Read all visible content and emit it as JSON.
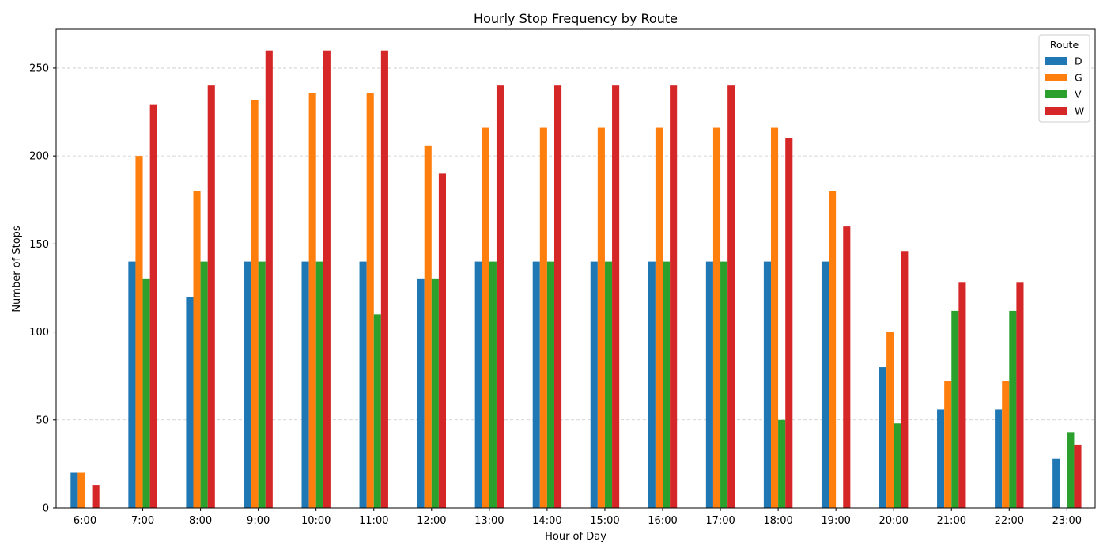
{
  "chart_data": {
    "type": "bar",
    "title": "Hourly Stop Frequency by Route",
    "xlabel": "Hour of Day",
    "ylabel": "Number of Stops",
    "ylim": [
      0,
      272
    ],
    "yticks": [
      0,
      50,
      100,
      150,
      200,
      250
    ],
    "grid": "y-dashed",
    "legend": {
      "title": "Route",
      "placement": "top-right"
    },
    "categories": [
      "6:00",
      "7:00",
      "8:00",
      "9:00",
      "10:00",
      "11:00",
      "12:00",
      "13:00",
      "14:00",
      "15:00",
      "16:00",
      "17:00",
      "18:00",
      "19:00",
      "20:00",
      "21:00",
      "22:00",
      "23:00"
    ],
    "series": [
      {
        "name": "D",
        "color": "#1f77b4",
        "values": [
          20,
          140,
          120,
          140,
          140,
          140,
          130,
          140,
          140,
          140,
          140,
          140,
          140,
          140,
          80,
          56,
          56,
          28
        ]
      },
      {
        "name": "G",
        "color": "#ff7f0e",
        "values": [
          20,
          200,
          180,
          232,
          236,
          236,
          206,
          216,
          216,
          216,
          216,
          216,
          216,
          180,
          100,
          72,
          72,
          0
        ]
      },
      {
        "name": "V",
        "color": "#2ca02c",
        "values": [
          0,
          130,
          140,
          140,
          140,
          110,
          130,
          140,
          140,
          140,
          140,
          140,
          50,
          0,
          48,
          112,
          112,
          43
        ]
      },
      {
        "name": "W",
        "color": "#d62728",
        "values": [
          13,
          229,
          240,
          260,
          260,
          260,
          190,
          240,
          240,
          240,
          240,
          240,
          210,
          160,
          146,
          128,
          128,
          36
        ]
      }
    ]
  }
}
